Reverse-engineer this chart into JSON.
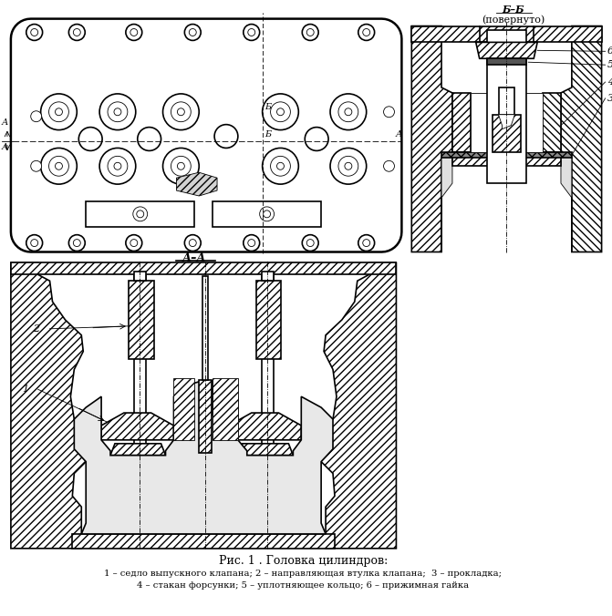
{
  "title": "Рис. 1 . Головка цилиндров:",
  "caption_line1": "1 – седло выпускного клапана; 2 – направляющая втулка клапана;  3 – прокладка;",
  "caption_line2": "4 – стакан форсунки; 5 – уплотняющее кольцо; 6 – прижимная гайка",
  "section_label_aa": "А–А",
  "section_label_bb": "Б–Б",
  "section_note": "(повернуто)",
  "bg_color": "#ffffff",
  "line_color": "#000000"
}
